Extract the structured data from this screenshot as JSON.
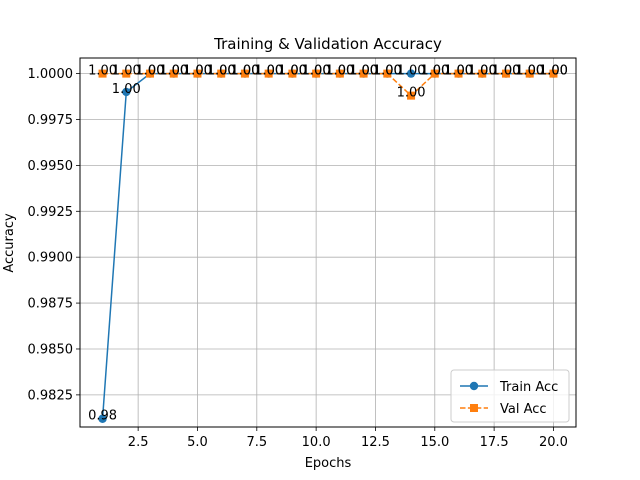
{
  "chart_data": {
    "type": "line",
    "title": "Training & Validation Accuracy",
    "xlabel": "Epochs",
    "ylabel": "Accuracy",
    "xlim": [
      0.05,
      20.95
    ],
    "ylim": [
      0.98075,
      1.00085
    ],
    "xticks": [
      2.5,
      5.0,
      7.5,
      10.0,
      12.5,
      15.0,
      17.5,
      20.0
    ],
    "xtick_labels": [
      "2.5",
      "5.0",
      "7.5",
      "10.0",
      "12.5",
      "15.0",
      "17.5",
      "20.0"
    ],
    "yticks": [
      0.9825,
      0.985,
      0.9875,
      0.99,
      0.9925,
      0.995,
      0.9975,
      1.0
    ],
    "ytick_labels": [
      "0.9825",
      "0.9850",
      "0.9875",
      "0.9900",
      "0.9925",
      "0.9950",
      "0.9975",
      "1.0000"
    ],
    "grid": true,
    "legend_position": "lower-right",
    "x": [
      1,
      2,
      3,
      4,
      5,
      6,
      7,
      8,
      9,
      10,
      11,
      12,
      13,
      14,
      15,
      16,
      17,
      18,
      19,
      20
    ],
    "series": [
      {
        "name": "Train Acc",
        "color": "#1f77b4",
        "marker": "circle",
        "line_style": "solid",
        "values": [
          0.9812,
          0.999,
          1.0,
          1.0,
          1.0,
          1.0,
          1.0,
          1.0,
          1.0,
          1.0,
          1.0,
          1.0,
          1.0,
          1.0,
          1.0,
          1.0,
          1.0,
          1.0,
          1.0,
          1.0
        ],
        "labels": [
          "0.98",
          "1.00",
          "1.00",
          "1.00",
          "1.00",
          "1.00",
          "1.00",
          "1.00",
          "1.00",
          "1.00",
          "1.00",
          "1.00",
          "1.00",
          "1.00",
          "1.00",
          "1.00",
          "1.00",
          "1.00",
          "1.00",
          "1.00"
        ]
      },
      {
        "name": "Val Acc",
        "color": "#ff7f0e",
        "marker": "square",
        "line_style": "dashed",
        "values": [
          1.0,
          1.0,
          1.0,
          1.0,
          1.0,
          1.0,
          1.0,
          1.0,
          1.0,
          1.0,
          1.0,
          1.0,
          1.0,
          0.9988,
          1.0,
          1.0,
          1.0,
          1.0,
          1.0,
          1.0
        ],
        "labels": [
          "1.00",
          "1.00",
          "1.00",
          "1.00",
          "1.00",
          "1.00",
          "1.00",
          "1.00",
          "1.00",
          "1.00",
          "1.00",
          "1.00",
          "1.00",
          "1.00",
          "1.00",
          "1.00",
          "1.00",
          "1.00",
          "1.00",
          "1.00"
        ]
      }
    ]
  }
}
